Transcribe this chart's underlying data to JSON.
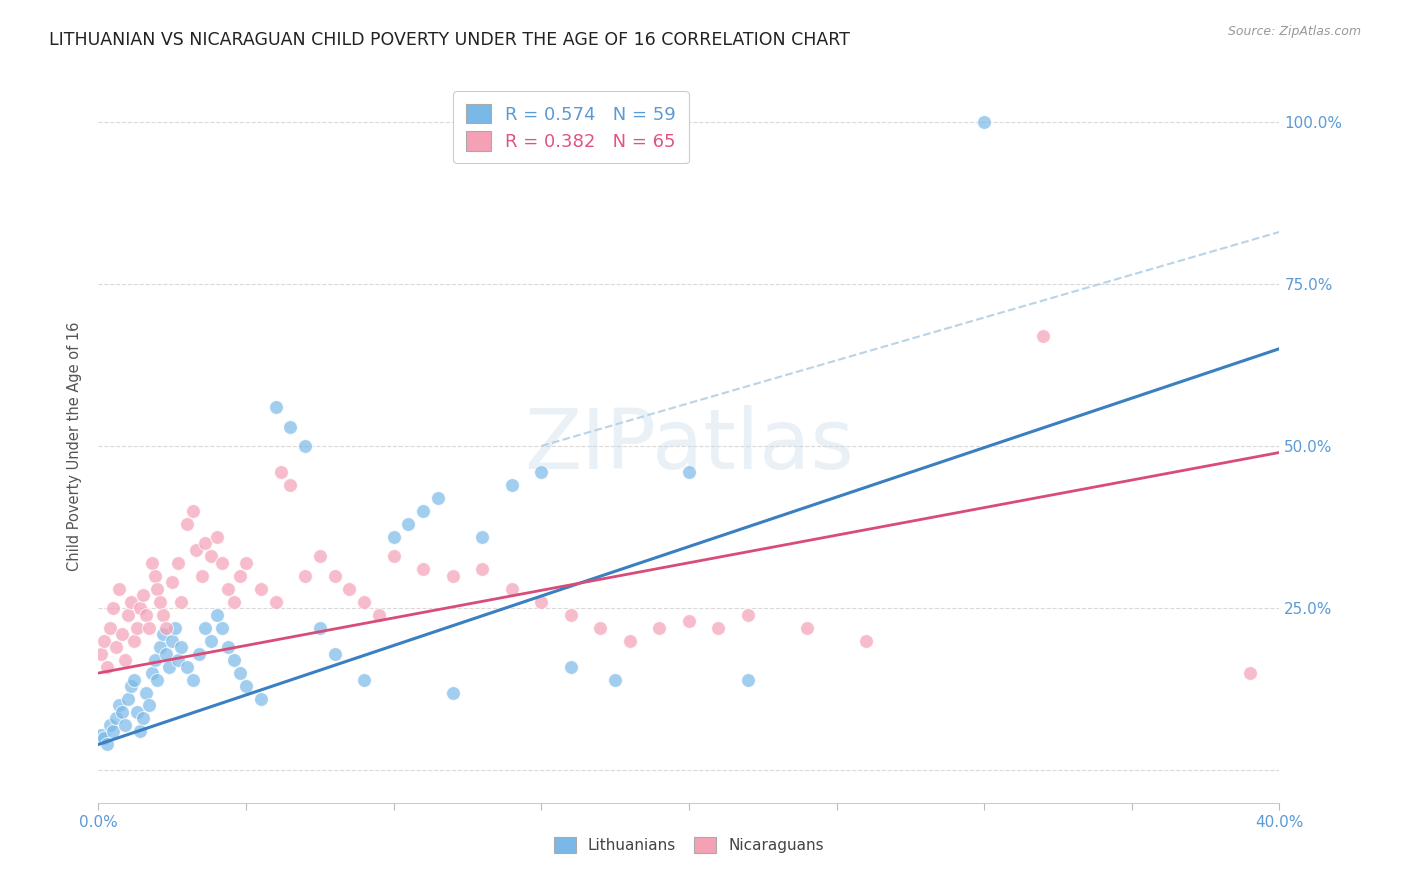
{
  "title": "LITHUANIAN VS NICARAGUAN CHILD POVERTY UNDER THE AGE OF 16 CORRELATION CHART",
  "source": "Source: ZipAtlas.com",
  "ylabel": "Child Poverty Under the Age of 16",
  "xlim": [
    0.0,
    0.4
  ],
  "ylim": [
    -0.05,
    1.05
  ],
  "yticks": [
    0.0,
    0.25,
    0.5,
    0.75,
    1.0
  ],
  "ytick_labels": [
    "",
    "25.0%",
    "50.0%",
    "75.0%",
    "100.0%"
  ],
  "xticks": [
    0.0,
    0.05,
    0.1,
    0.15,
    0.2,
    0.25,
    0.3,
    0.35,
    0.4
  ],
  "xtick_labels": [
    "0.0%",
    "",
    "",
    "",
    "",
    "",
    "",
    "",
    "40.0%"
  ],
  "blue_scatter": [
    [
      0.001,
      0.055
    ],
    [
      0.002,
      0.05
    ],
    [
      0.003,
      0.04
    ],
    [
      0.004,
      0.07
    ],
    [
      0.005,
      0.06
    ],
    [
      0.006,
      0.08
    ],
    [
      0.007,
      0.1
    ],
    [
      0.008,
      0.09
    ],
    [
      0.009,
      0.07
    ],
    [
      0.01,
      0.11
    ],
    [
      0.011,
      0.13
    ],
    [
      0.012,
      0.14
    ],
    [
      0.013,
      0.09
    ],
    [
      0.014,
      0.06
    ],
    [
      0.015,
      0.08
    ],
    [
      0.016,
      0.12
    ],
    [
      0.017,
      0.1
    ],
    [
      0.018,
      0.15
    ],
    [
      0.019,
      0.17
    ],
    [
      0.02,
      0.14
    ],
    [
      0.021,
      0.19
    ],
    [
      0.022,
      0.21
    ],
    [
      0.023,
      0.18
    ],
    [
      0.024,
      0.16
    ],
    [
      0.025,
      0.2
    ],
    [
      0.026,
      0.22
    ],
    [
      0.027,
      0.17
    ],
    [
      0.028,
      0.19
    ],
    [
      0.03,
      0.16
    ],
    [
      0.032,
      0.14
    ],
    [
      0.034,
      0.18
    ],
    [
      0.036,
      0.22
    ],
    [
      0.038,
      0.2
    ],
    [
      0.04,
      0.24
    ],
    [
      0.042,
      0.22
    ],
    [
      0.044,
      0.19
    ],
    [
      0.046,
      0.17
    ],
    [
      0.048,
      0.15
    ],
    [
      0.05,
      0.13
    ],
    [
      0.055,
      0.11
    ],
    [
      0.06,
      0.56
    ],
    [
      0.065,
      0.53
    ],
    [
      0.07,
      0.5
    ],
    [
      0.075,
      0.22
    ],
    [
      0.08,
      0.18
    ],
    [
      0.09,
      0.14
    ],
    [
      0.1,
      0.36
    ],
    [
      0.105,
      0.38
    ],
    [
      0.11,
      0.4
    ],
    [
      0.115,
      0.42
    ],
    [
      0.12,
      0.12
    ],
    [
      0.13,
      0.36
    ],
    [
      0.14,
      0.44
    ],
    [
      0.15,
      0.46
    ],
    [
      0.16,
      0.16
    ],
    [
      0.175,
      0.14
    ],
    [
      0.2,
      0.46
    ],
    [
      0.22,
      0.14
    ],
    [
      0.3,
      1.0
    ]
  ],
  "pink_scatter": [
    [
      0.001,
      0.18
    ],
    [
      0.002,
      0.2
    ],
    [
      0.003,
      0.16
    ],
    [
      0.004,
      0.22
    ],
    [
      0.005,
      0.25
    ],
    [
      0.006,
      0.19
    ],
    [
      0.007,
      0.28
    ],
    [
      0.008,
      0.21
    ],
    [
      0.009,
      0.17
    ],
    [
      0.01,
      0.24
    ],
    [
      0.011,
      0.26
    ],
    [
      0.012,
      0.2
    ],
    [
      0.013,
      0.22
    ],
    [
      0.014,
      0.25
    ],
    [
      0.015,
      0.27
    ],
    [
      0.016,
      0.24
    ],
    [
      0.017,
      0.22
    ],
    [
      0.018,
      0.32
    ],
    [
      0.019,
      0.3
    ],
    [
      0.02,
      0.28
    ],
    [
      0.021,
      0.26
    ],
    [
      0.022,
      0.24
    ],
    [
      0.023,
      0.22
    ],
    [
      0.025,
      0.29
    ],
    [
      0.027,
      0.32
    ],
    [
      0.028,
      0.26
    ],
    [
      0.03,
      0.38
    ],
    [
      0.032,
      0.4
    ],
    [
      0.033,
      0.34
    ],
    [
      0.035,
      0.3
    ],
    [
      0.036,
      0.35
    ],
    [
      0.038,
      0.33
    ],
    [
      0.04,
      0.36
    ],
    [
      0.042,
      0.32
    ],
    [
      0.044,
      0.28
    ],
    [
      0.046,
      0.26
    ],
    [
      0.048,
      0.3
    ],
    [
      0.05,
      0.32
    ],
    [
      0.055,
      0.28
    ],
    [
      0.06,
      0.26
    ],
    [
      0.062,
      0.46
    ],
    [
      0.065,
      0.44
    ],
    [
      0.07,
      0.3
    ],
    [
      0.075,
      0.33
    ],
    [
      0.08,
      0.3
    ],
    [
      0.085,
      0.28
    ],
    [
      0.09,
      0.26
    ],
    [
      0.095,
      0.24
    ],
    [
      0.1,
      0.33
    ],
    [
      0.11,
      0.31
    ],
    [
      0.12,
      0.3
    ],
    [
      0.13,
      0.31
    ],
    [
      0.14,
      0.28
    ],
    [
      0.15,
      0.26
    ],
    [
      0.16,
      0.24
    ],
    [
      0.17,
      0.22
    ],
    [
      0.18,
      0.2
    ],
    [
      0.19,
      0.22
    ],
    [
      0.2,
      0.23
    ],
    [
      0.21,
      0.22
    ],
    [
      0.22,
      0.24
    ],
    [
      0.24,
      0.22
    ],
    [
      0.26,
      0.2
    ],
    [
      0.32,
      0.67
    ],
    [
      0.39,
      0.15
    ]
  ],
  "blue_line_x": [
    0.0,
    0.4
  ],
  "blue_line_y": [
    0.04,
    0.65
  ],
  "pink_line_x": [
    0.0,
    0.4
  ],
  "pink_line_y": [
    0.15,
    0.49
  ],
  "dash_line_x": [
    0.15,
    0.4
  ],
  "dash_line_y": [
    0.5,
    0.83
  ],
  "blue_color": "#7ab8e8",
  "pink_color": "#f4a0b5",
  "blue_line_color": "#3a7fbf",
  "pink_line_color": "#d94c78",
  "blue_dashed_color": "#b8d4e8",
  "grid_color": "#d5d5d5",
  "tick_label_color": "#5b9bd5",
  "background_color": "#ffffff",
  "watermark": "ZIPatlas",
  "title_fontsize": 12.5,
  "axis_label_fontsize": 10.5,
  "tick_fontsize": 11,
  "legend_blue_label": "R = 0.574   N = 59",
  "legend_pink_label": "R = 0.382   N = 65",
  "legend_blue_color": "#5b9bd5",
  "legend_pink_color": "#e05580"
}
